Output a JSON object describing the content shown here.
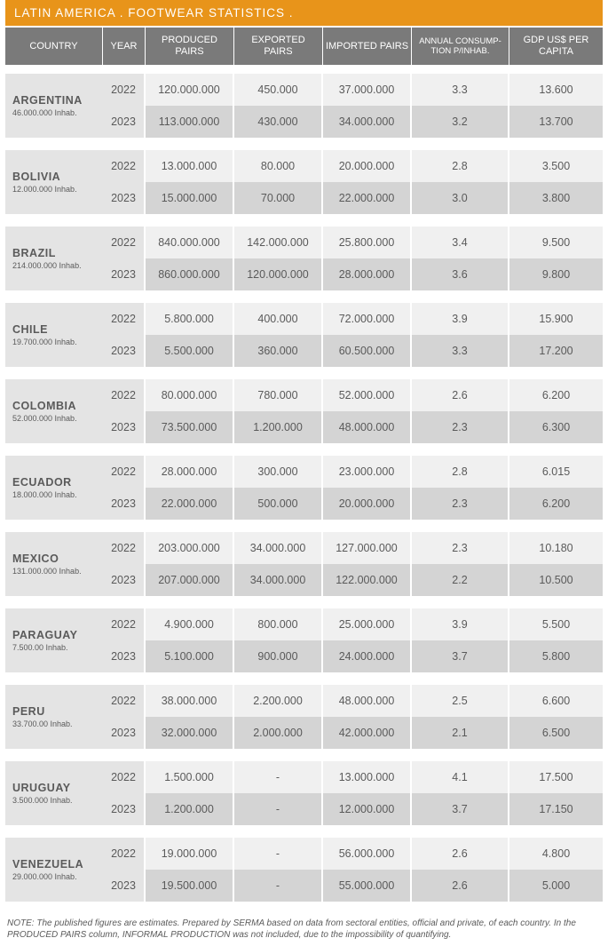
{
  "title": "LATIN AMERICA . FOOTWEAR STATISTICS .",
  "headers": {
    "country": "COUNTRY",
    "year": "YEAR",
    "produced": "PRODUCED PAIRS",
    "exported": "EXPORTED PAIRS",
    "imported": "IMPORTED PAIRS",
    "consumption": "ANNUAL CONSUMP-TION P/INHAB.",
    "gdp": "GDP US$ PER CAPITA"
  },
  "colors": {
    "title_bg": "#e8941a",
    "header_bg": "#7a7a7a",
    "row_light": "#f0f0f0",
    "row_dark": "#d4d4d4",
    "country_bg": "#e4e4e4",
    "text": "#5a5a5a"
  },
  "countries": [
    {
      "name": "ARGENTINA",
      "inhab": "46.000.000 Inhab.",
      "rows": [
        {
          "year": "2022",
          "produced": "120.000.000",
          "exported": "450.000",
          "imported": "37.000.000",
          "consumption": "3.3",
          "gdp": "13.600"
        },
        {
          "year": "2023",
          "produced": "113.000.000",
          "exported": "430.000",
          "imported": "34.000.000",
          "consumption": "3.2",
          "gdp": "13.700"
        }
      ]
    },
    {
      "name": "BOLIVIA",
      "inhab": "12.000.000 Inhab.",
      "rows": [
        {
          "year": "2022",
          "produced": "13.000.000",
          "exported": "80.000",
          "imported": "20.000.000",
          "consumption": "2.8",
          "gdp": "3.500"
        },
        {
          "year": "2023",
          "produced": "15.000.000",
          "exported": "70.000",
          "imported": "22.000.000",
          "consumption": "3.0",
          "gdp": "3.800"
        }
      ]
    },
    {
      "name": "BRAZIL",
      "inhab": "214.000.000 Inhab.",
      "rows": [
        {
          "year": "2022",
          "produced": "840.000.000",
          "exported": "142.000.000",
          "imported": "25.800.000",
          "consumption": "3.4",
          "gdp": "9.500"
        },
        {
          "year": "2023",
          "produced": "860.000.000",
          "exported": "120.000.000",
          "imported": "28.000.000",
          "consumption": "3.6",
          "gdp": "9.800"
        }
      ]
    },
    {
      "name": "CHILE",
      "inhab": "19.700.000 Inhab.",
      "rows": [
        {
          "year": "2022",
          "produced": "5.800.000",
          "exported": "400.000",
          "imported": "72.000.000",
          "consumption": "3.9",
          "gdp": "15.900"
        },
        {
          "year": "2023",
          "produced": "5.500.000",
          "exported": "360.000",
          "imported": "60.500.000",
          "consumption": "3.3",
          "gdp": "17.200"
        }
      ]
    },
    {
      "name": "COLOMBIA",
      "inhab": "52.000.000 Inhab.",
      "rows": [
        {
          "year": "2022",
          "produced": "80.000.000",
          "exported": "780.000",
          "imported": "52.000.000",
          "consumption": "2.6",
          "gdp": "6.200"
        },
        {
          "year": "2023",
          "produced": "73.500.000",
          "exported": "1.200.000",
          "imported": "48.000.000",
          "consumption": "2.3",
          "gdp": "6.300"
        }
      ]
    },
    {
      "name": "ECUADOR",
      "inhab": "18.000.000 Inhab.",
      "rows": [
        {
          "year": "2022",
          "produced": "28.000.000",
          "exported": "300.000",
          "imported": "23.000.000",
          "consumption": "2.8",
          "gdp": "6.015"
        },
        {
          "year": "2023",
          "produced": "22.000.000",
          "exported": "500.000",
          "imported": "20.000.000",
          "consumption": "2.3",
          "gdp": "6.200"
        }
      ]
    },
    {
      "name": "MEXICO",
      "inhab": "131.000.000 Inhab.",
      "rows": [
        {
          "year": "2022",
          "produced": "203.000.000",
          "exported": "34.000.000",
          "imported": "127.000.000",
          "consumption": "2.3",
          "gdp": "10.180"
        },
        {
          "year": "2023",
          "produced": "207.000.000",
          "exported": "34.000.000",
          "imported": "122.000.000",
          "consumption": "2.2",
          "gdp": "10.500"
        }
      ]
    },
    {
      "name": "PARAGUAY",
      "inhab": "7.500.00 Inhab.",
      "rows": [
        {
          "year": "2022",
          "produced": "4.900.000",
          "exported": "800.000",
          "imported": "25.000.000",
          "consumption": "3.9",
          "gdp": "5.500"
        },
        {
          "year": "2023",
          "produced": "5.100.000",
          "exported": "900.000",
          "imported": "24.000.000",
          "consumption": "3.7",
          "gdp": "5.800"
        }
      ]
    },
    {
      "name": "PERU",
      "inhab": "33.700.00 Inhab.",
      "rows": [
        {
          "year": "2022",
          "produced": "38.000.000",
          "exported": "2.200.000",
          "imported": "48.000.000",
          "consumption": "2.5",
          "gdp": "6.600"
        },
        {
          "year": "2023",
          "produced": "32.000.000",
          "exported": "2.000.000",
          "imported": "42.000.000",
          "consumption": "2.1",
          "gdp": "6.500"
        }
      ]
    },
    {
      "name": "URUGUAY",
      "inhab": "3.500.000 Inhab.",
      "rows": [
        {
          "year": "2022",
          "produced": "1.500.000",
          "exported": "-",
          "imported": "13.000.000",
          "consumption": "4.1",
          "gdp": "17.500"
        },
        {
          "year": "2023",
          "produced": "1.200.000",
          "exported": "-",
          "imported": "12.000.000",
          "consumption": "3.7",
          "gdp": "17.150"
        }
      ]
    },
    {
      "name": "VENEZUELA",
      "inhab": "29.000.000 Inhab.",
      "rows": [
        {
          "year": "2022",
          "produced": "19.000.000",
          "exported": "-",
          "imported": "56.000.000",
          "consumption": "2.6",
          "gdp": "4.800"
        },
        {
          "year": "2023",
          "produced": "19.500.000",
          "exported": "-",
          "imported": "55.000.000",
          "consumption": "2.6",
          "gdp": "5.000"
        }
      ]
    }
  ],
  "footnote": "NOTE: The published figures are estimates. Prepared by SERMA based on data from sectoral entities, official and private, of each country. In the PRODUCED PAIRS column, INFORMAL PRODUCTION was not included, due to the impossibility of quantifying."
}
